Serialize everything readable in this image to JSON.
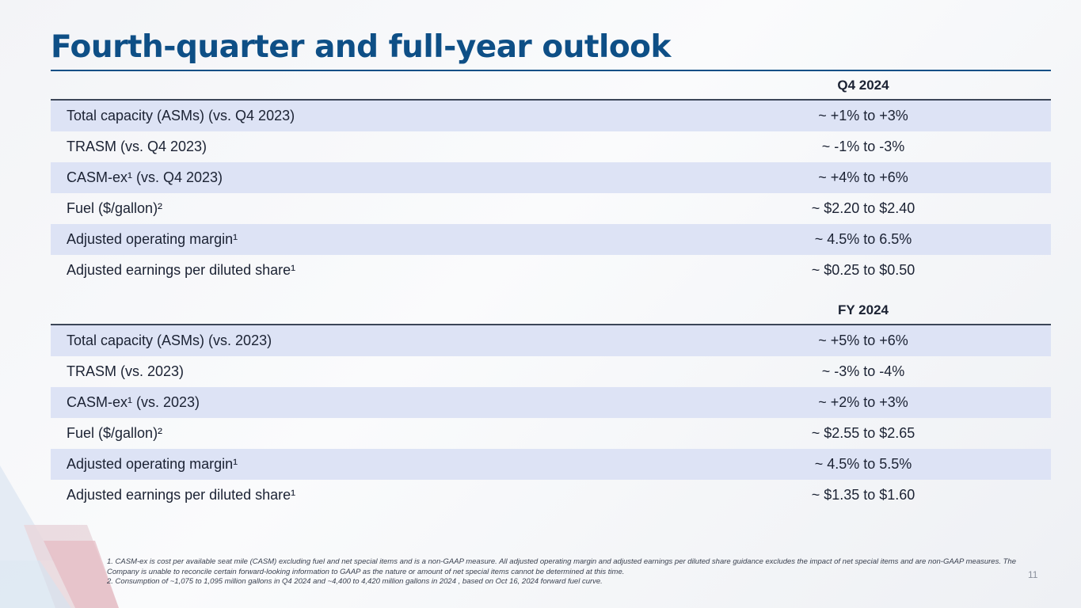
{
  "title": "Fourth-quarter and full-year outlook",
  "sections": [
    {
      "period": "Q4 2024",
      "rows": [
        {
          "label": "Total capacity (ASMs) (vs. Q4 2023)",
          "value": "~ +1% to +3%"
        },
        {
          "label": "TRASM (vs. Q4 2023)",
          "value": "~ -1% to -3%"
        },
        {
          "label": "CASM-ex¹ (vs. Q4 2023)",
          "value": "~ +4% to +6%"
        },
        {
          "label": "Fuel ($/gallon)²",
          "value": "~ $2.20 to $2.40"
        },
        {
          "label": "Adjusted operating margin¹",
          "value": "~ 4.5% to 6.5%"
        },
        {
          "label": "Adjusted earnings per diluted share¹",
          "value": "~ $0.25 to $0.50"
        }
      ]
    },
    {
      "period": "FY 2024",
      "rows": [
        {
          "label": "Total capacity (ASMs) (vs. 2023)",
          "value": "~ +5% to +6%"
        },
        {
          "label": "TRASM (vs. 2023)",
          "value": "~ -3% to -4%"
        },
        {
          "label": "CASM-ex¹ (vs. 2023)",
          "value": "~ +2% to +3%"
        },
        {
          "label": "Fuel ($/gallon)²",
          "value": "~ $2.55 to $2.65"
        },
        {
          "label": "Adjusted operating margin¹",
          "value": "~ 4.5% to 5.5%"
        },
        {
          "label": "Adjusted earnings per diluted share¹",
          "value": "~ $1.35 to $1.60"
        }
      ]
    }
  ],
  "footnotes": [
    "1. CASM-ex is cost per available seat mile (CASM) excluding fuel and net special items and is a non-GAAP measure. All adjusted operating margin and adjusted earnings per diluted share guidance excludes the impact of net special items and are non-GAAP measures. The Company is unable to reconcile certain forward-looking information to GAAP as the nature or amount of net special items cannot be determined at this time.",
    "2. Consumption of ~1,075 to 1,095 million gallons in Q4 2024 and ~4,400 to 4,420 million gallons in 2024 , based on Oct 16, 2024 forward fuel curve."
  ],
  "page_number": "11",
  "colors": {
    "title": "#0e4f86",
    "row_shade": "#dde3f5",
    "rule": "#3c4658"
  }
}
